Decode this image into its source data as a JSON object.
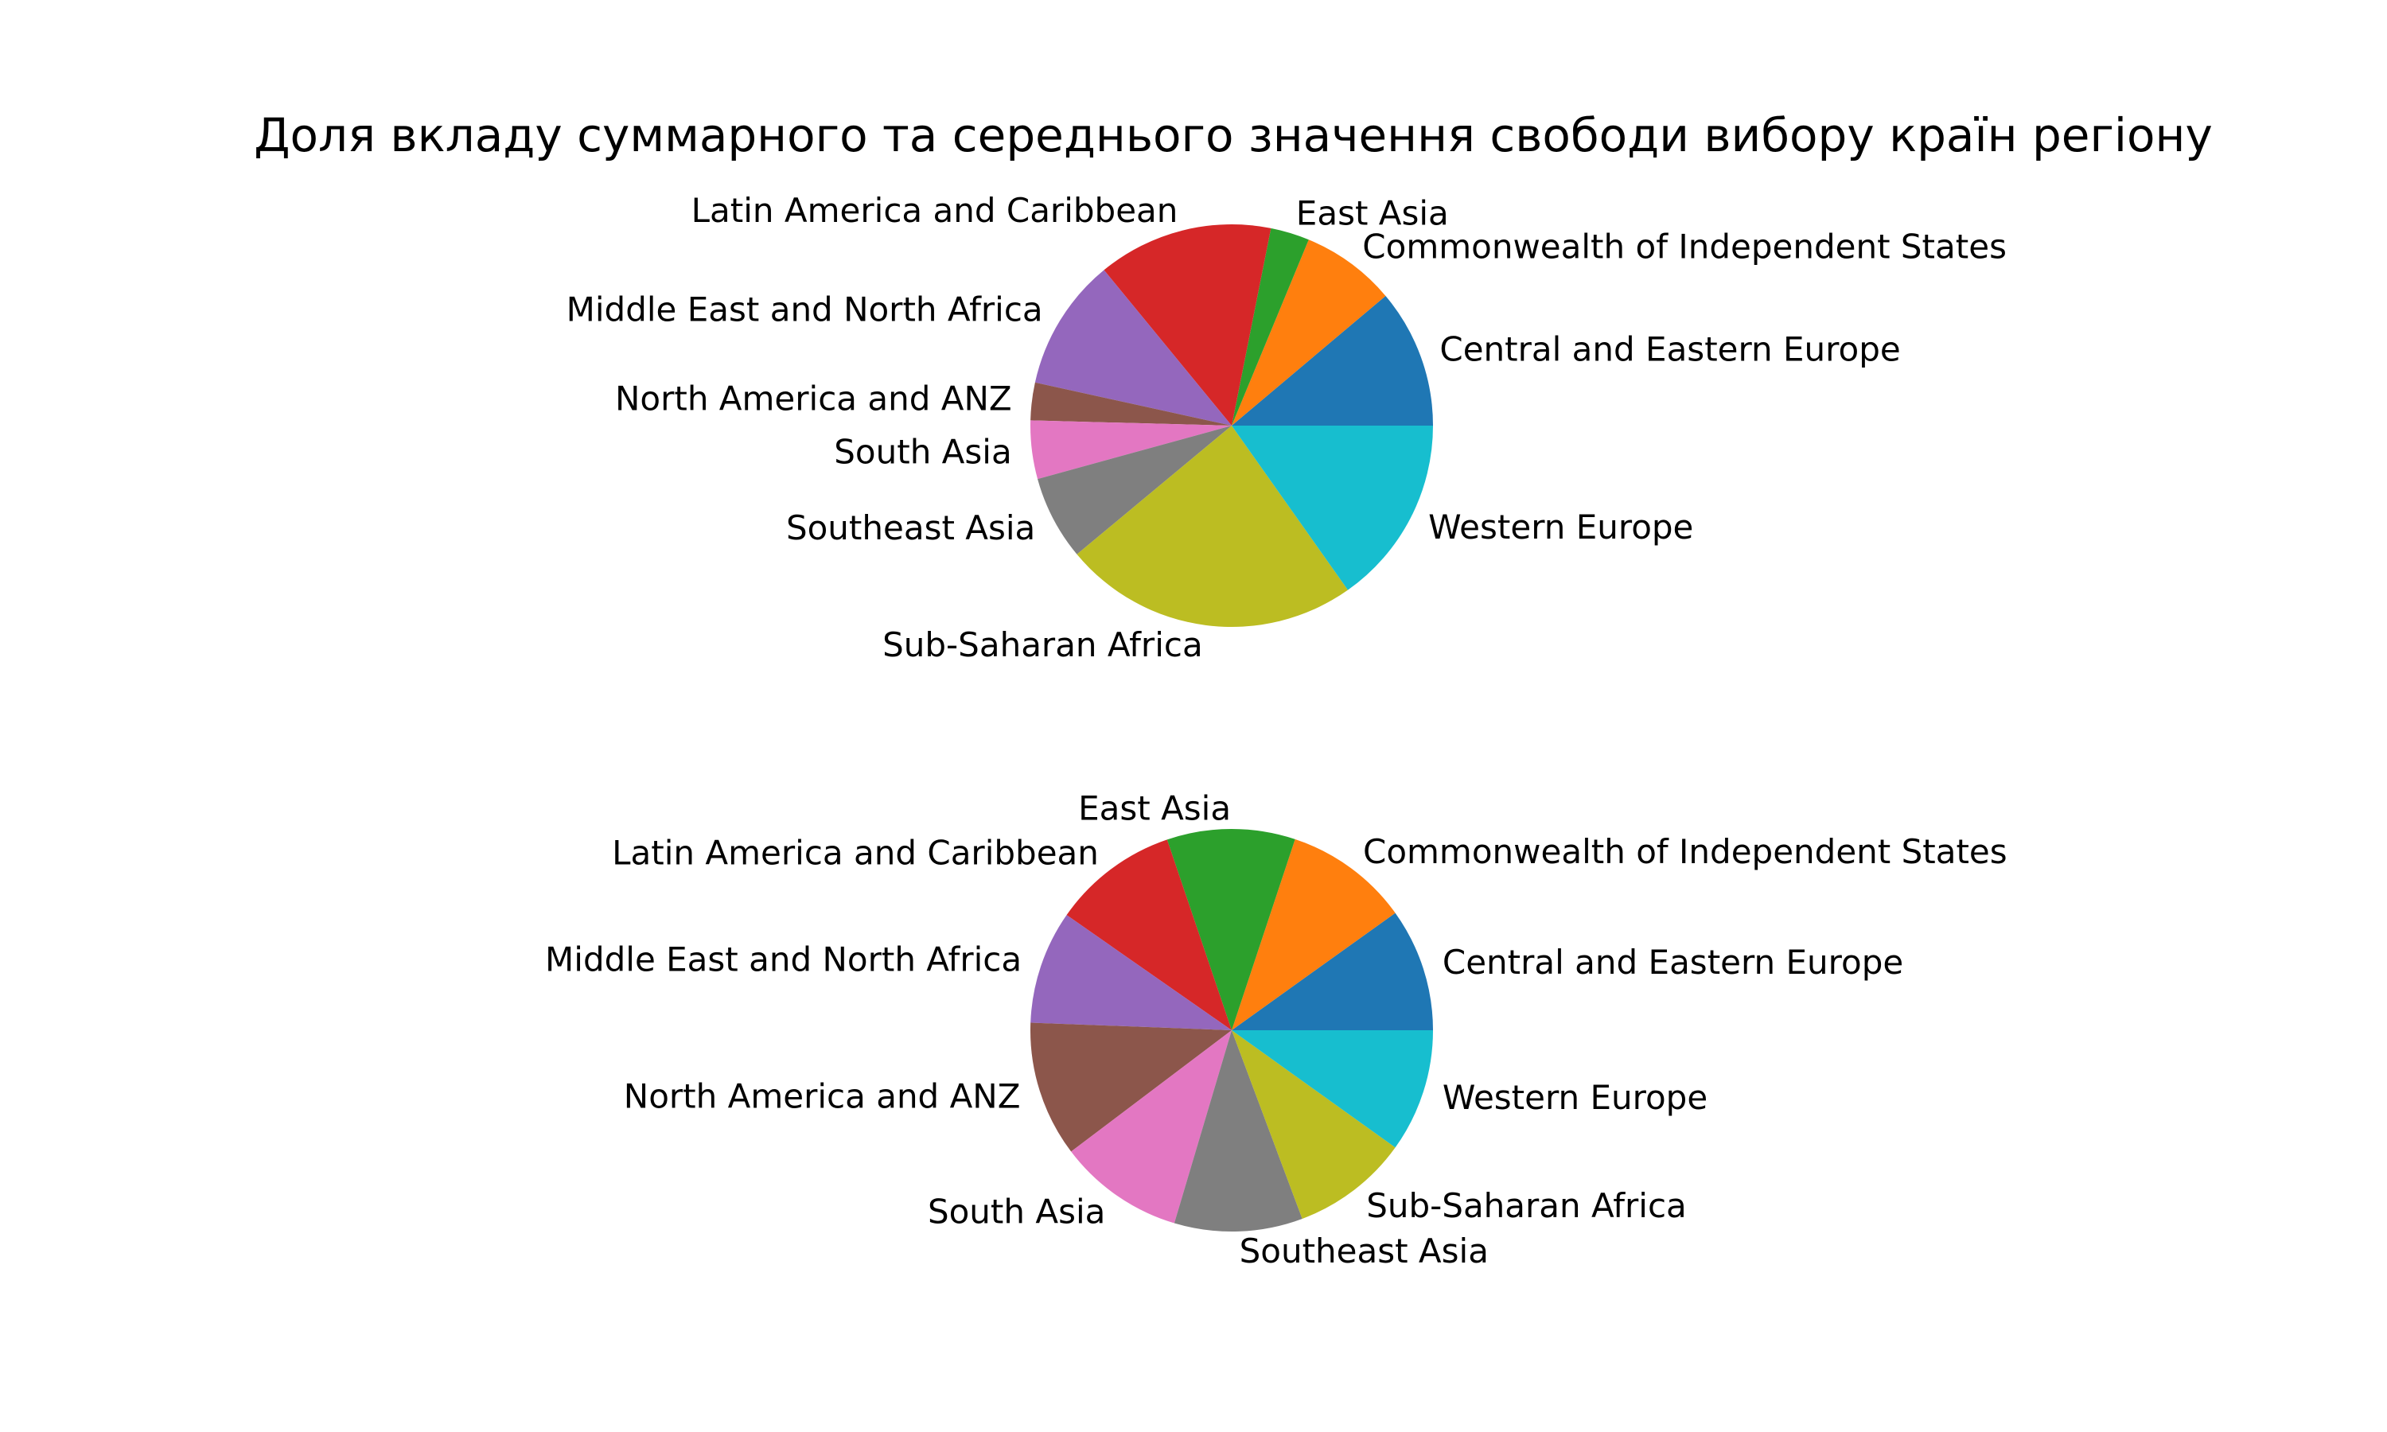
{
  "title": "Доля вкладу суммарного та середнього значення свободи вибору країн регіону",
  "chart_data": [
    {
      "type": "pie",
      "labels": [
        "Central and Eastern Europe",
        "Commonwealth of Independent States",
        "East Asia",
        "Latin America and Caribbean",
        "Middle East and North Africa",
        "North America and ANZ",
        "South Asia",
        "Southeast Asia",
        "Sub-Saharan Africa",
        "Western Europe"
      ],
      "values": [
        10.7,
        7.3,
        3.0,
        13.5,
        10.2,
        2.9,
        4.5,
        6.5,
        22.8,
        14.6
      ],
      "colors": [
        "#1f77b4",
        "#ff7f0e",
        "#2ca02c",
        "#d62728",
        "#9467bd",
        "#8c564b",
        "#e377c2",
        "#7f7f7f",
        "#bcbd22",
        "#17becf"
      ],
      "start_angle": 0,
      "direction": "counterclockwise"
    },
    {
      "type": "pie",
      "labels": [
        "Central and Eastern Europe",
        "Commonwealth of Independent States",
        "East Asia",
        "Latin America and Caribbean",
        "Middle East and North Africa",
        "North America and ANZ",
        "South Asia",
        "Southeast Asia",
        "Sub-Saharan Africa",
        "Western Europe"
      ],
      "values": [
        9.9,
        10.0,
        10.3,
        10.1,
        9.1,
        10.9,
        10.1,
        10.3,
        9.4,
        9.9
      ],
      "colors": [
        "#1f77b4",
        "#ff7f0e",
        "#2ca02c",
        "#d62728",
        "#9467bd",
        "#8c564b",
        "#e377c2",
        "#7f7f7f",
        "#bcbd22",
        "#17becf"
      ],
      "start_angle": 0,
      "direction": "counterclockwise"
    }
  ]
}
